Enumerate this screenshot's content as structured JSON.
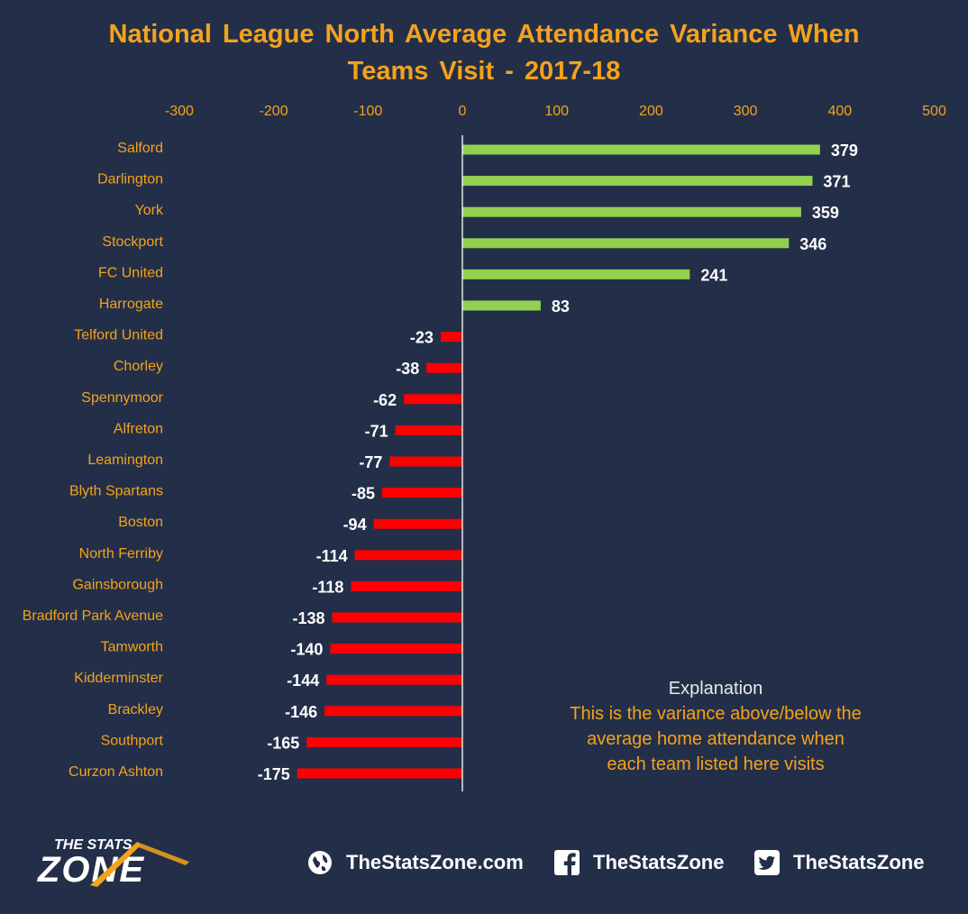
{
  "title_line1": "National League North Average Attendance Variance When",
  "title_line2": "Teams Visit - 2017-18",
  "colors": {
    "background": "#232f49",
    "accent": "#f4a21c",
    "positive": "#92d050",
    "negative": "#ff0000",
    "text": "#ffffff"
  },
  "chart_data": {
    "type": "bar",
    "orientation": "horizontal",
    "title": "National League North Average Attendance Variance When Teams Visit - 2017-18",
    "xlim": [
      -300,
      500
    ],
    "xticks": [
      "-300",
      "-200",
      "-100",
      "0",
      "100",
      "200",
      "300",
      "400",
      "500"
    ],
    "xtick_values": [
      -300,
      -200,
      -100,
      0,
      100,
      200,
      300,
      400,
      500
    ],
    "xaxis_position": "top",
    "grid": false,
    "categories": [
      "Salford",
      "Darlington",
      "York",
      "Stockport",
      "FC United",
      "Harrogate",
      "Telford United",
      "Chorley",
      "Spennymoor",
      "Alfreton",
      "Leamington",
      "Blyth Spartans",
      "Boston",
      "North Ferriby",
      "Gainsborough",
      "Bradford Park Avenue",
      "Tamworth",
      "Kidderminster",
      "Brackley",
      "Southport",
      "Curzon Ashton"
    ],
    "values": [
      379,
      371,
      359,
      346,
      241,
      83,
      -23,
      -38,
      -62,
      -71,
      -77,
      -85,
      -94,
      -114,
      -118,
      -138,
      -140,
      -144,
      -146,
      -165,
      -175
    ],
    "data_labels": [
      "379",
      "371",
      "359",
      "346",
      "241",
      "83",
      "-23",
      "-38",
      "-62",
      "-71",
      "-77",
      "-85",
      "-94",
      "-114",
      "-118",
      "-138",
      "-140",
      "-144",
      "-146",
      "-165",
      "-175"
    ]
  },
  "explanation": {
    "heading": "Explanation",
    "line1": "This is the variance above/below the",
    "line2": "average home attendance when",
    "line3": "each team listed here visits"
  },
  "footer": {
    "logo_line1": "THE STATS",
    "logo_line2": "ZONE",
    "website": "TheStatsZone.com",
    "facebook": "TheStatsZone",
    "twitter": "TheStatsZone",
    "icons": [
      "globe-icon",
      "facebook-icon",
      "twitter-icon"
    ]
  }
}
